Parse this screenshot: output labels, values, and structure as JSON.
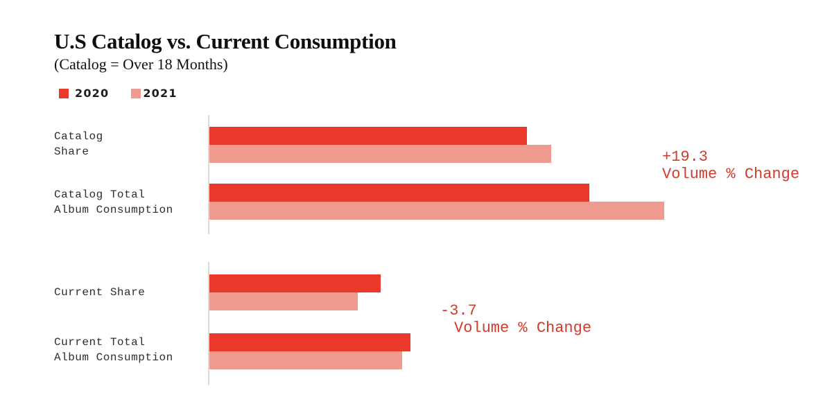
{
  "chart": {
    "title": "U.S Catalog vs. Current Consumption",
    "subtitle": "(Catalog = Over 18 Months)"
  },
  "legend": {
    "items": [
      {
        "label": "2020",
        "color": "#E8392B"
      },
      {
        "label": "2021",
        "color": "#F09B90"
      }
    ]
  },
  "colors": {
    "bar_2020": "#E8392B",
    "bar_2021": "#F09B90",
    "annotation_text": "#D03B2B",
    "axis_line": "#DADADA",
    "category_label_text": "#2D2D2D"
  },
  "chart_data": {
    "type": "bar",
    "orientation": "horizontal",
    "title": "U.S Catalog vs. Current Consumption",
    "subtitle": "(Catalog = Over 18 Months)",
    "legend_entries": [
      "2020",
      "2021"
    ],
    "legend_position": "top-left",
    "grid": false,
    "value_axis_labels_visible": false,
    "value_scale_note": "No numeric axis shown; values are estimated bar lengths as % of the longest bar (Catalog Total Album Consumption 2021 = 100).",
    "series_names": [
      "2020",
      "2021"
    ],
    "groups": [
      {
        "section": "Catalog",
        "label": "Catalog Share",
        "label_lines": [
          "Catalog",
          "Share"
        ],
        "values": [
          69.8,
          75.2
        ]
      },
      {
        "section": "Catalog",
        "label": "Catalog Total Album Consumption",
        "label_lines": [
          "Catalog Total",
          "Album Consumption"
        ],
        "values": [
          83.5,
          100
        ]
      },
      {
        "section": "Current",
        "label": "Current Share",
        "label_lines": [
          "Current Share"
        ],
        "values": [
          37.7,
          32.6
        ]
      },
      {
        "section": "Current",
        "label": "Current Total Album Consumption",
        "label_lines": [
          "Current Total",
          "Album Consumption"
        ],
        "values": [
          44.2,
          42.4
        ]
      }
    ],
    "annotations": [
      {
        "section": "Catalog",
        "value": "+19.3",
        "label": "Volume % Change"
      },
      {
        "section": "Current",
        "value": "-3.7",
        "label": "Volume % Change"
      }
    ]
  }
}
